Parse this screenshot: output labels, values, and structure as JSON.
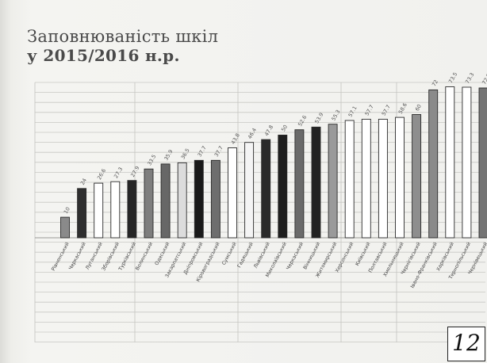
{
  "title": {
    "line1": "Заповнюваність шкіл",
    "line2": "у 2015/2016 н.р."
  },
  "page_number": "12",
  "chart_data": {
    "type": "bar",
    "title": "Заповнюваність шкіл у 2015/2016 н.р.",
    "xlabel": "",
    "ylabel": "",
    "ylim": [
      0,
      80
    ],
    "grid": true,
    "legend": "none",
    "categories": [
      "Рівненський",
      "Черкаський",
      "Луганський",
      "Зборівський",
      "Турківський",
      "Волинський",
      "Одеський",
      "Закарпатський",
      "Дніпровський",
      "Кіровоградський",
      "Сумський",
      "Гадяцький",
      "Львівський",
      "Миколаївський",
      "Черкаський",
      "Вінницький",
      "Житомирський",
      "Херсонський",
      "Київський",
      "Полтавський",
      "Хмельницький",
      "Чернігівський",
      "Івано-Франківський",
      "Харківський",
      "Тернопільський",
      "Чернівецький"
    ],
    "values": [
      10,
      24,
      26.6,
      27.3,
      27.9,
      33.5,
      35.9,
      36.5,
      37.7,
      37.7,
      43.8,
      46.4,
      47.8,
      50,
      52.6,
      53.9,
      55.3,
      57.1,
      57.7,
      57.7,
      58.6,
      60,
      72,
      73.5,
      73.3,
      72.9
    ],
    "value_labels": [
      "10",
      "24",
      "26.6",
      "27.3",
      "27.9",
      "33.5",
      "35.9",
      "36.5",
      "37.7",
      "37.7",
      "43.8",
      "46.4",
      "47.8",
      "50",
      "52.6",
      "53.9",
      "55.3",
      "57.1",
      "57.7",
      "57.7",
      "58.6",
      "60",
      "72",
      "73.5",
      "73.3",
      "72.9"
    ],
    "bar_colors": [
      "#8a8a8a",
      "#2e2e2e",
      "#ffffff",
      "#ffffff",
      "#262626",
      "#7e7e7e",
      "#676767",
      "#dcdcdc",
      "#1a1a1a",
      "#6e6e6e",
      "#ffffff",
      "#f4f4f4",
      "#2a2a2a",
      "#1e1e1e",
      "#6a6a6a",
      "#222222",
      "#9a9a9a",
      "#ffffff",
      "#ffffff",
      "#ffffff",
      "#ffffff",
      "#8e8e8e",
      "#8a8a8a",
      "#ffffff",
      "#ffffff",
      "#747474"
    ]
  }
}
